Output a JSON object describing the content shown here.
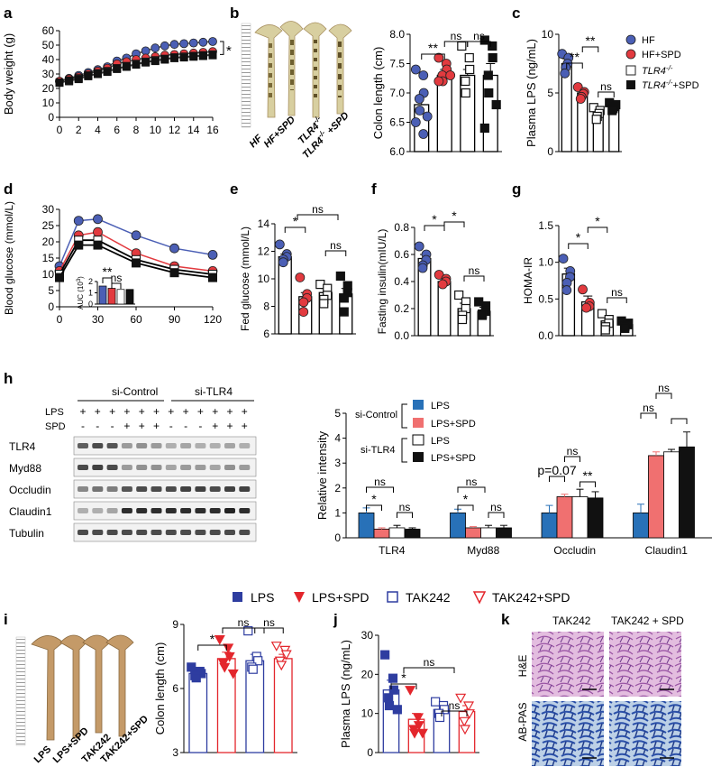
{
  "colors": {
    "hf": "#4b5fb5",
    "spd": "#e23a3f",
    "blue": "#2871b8",
    "salmon": "#f07070",
    "navy": "#2e3da0",
    "red": "#e3262c"
  },
  "panels": {
    "a": "a",
    "b": "b",
    "c": "c",
    "d": "d",
    "e": "e",
    "f": "f",
    "g": "g",
    "h": "h",
    "i": "i",
    "j": "j",
    "k": "k"
  },
  "legend_c": {
    "hf": "HF",
    "hf_spd": "HF+SPD",
    "tlr4": "TLR4",
    "tlr4_spd": "TLR4",
    "sup": "-/-",
    "spd_suffix": "+SPD"
  },
  "photo_b": {
    "labels": [
      "HF",
      "HF+SPD",
      "TLR4",
      "TLR4"
    ],
    "sup": "-/-",
    "spd_suffix": " +SPD"
  },
  "photo_i": {
    "labels": [
      "LPS",
      "LPS+SPD",
      "TAK242",
      "TAK242+SPD"
    ]
  },
  "legend_i": {
    "items": [
      "LPS",
      "LPS+SPD",
      "TAK242",
      "TAK242+SPD"
    ]
  },
  "panel_h": {
    "groups": [
      "si-Control",
      "si-TLR4"
    ],
    "rowlabels": [
      "LPS",
      "SPD"
    ],
    "lps_marks": [
      "+",
      "+",
      "+",
      "+",
      "+",
      "+",
      "+",
      "+",
      "+",
      "+",
      "+",
      "+"
    ],
    "spd_marks": [
      "-",
      "-",
      "-",
      "+",
      "+",
      "+",
      "-",
      "-",
      "-",
      "+",
      "+",
      "+"
    ],
    "bands": [
      "TLR4",
      "Myd88",
      "Occludin",
      "Claudin1",
      "Tubulin"
    ],
    "legend": {
      "si_control": "si-Control",
      "si_tlr4": "si-TLR4",
      "items": [
        "LPS",
        "LPS+SPD",
        "LPS",
        "LPS+SPD"
      ]
    }
  },
  "panel_k": {
    "cols": [
      "TAK242",
      "TAK242 + SPD"
    ],
    "rows": [
      "H&E",
      "AB-PAS"
    ]
  },
  "chart_data": [
    {
      "id": "a",
      "type": "line",
      "xlabel": "",
      "ylabel": "Body weight (g)",
      "ylim": [
        0,
        60
      ],
      "yticks": [
        "0",
        "10",
        "20",
        "30",
        "40",
        "50",
        "60"
      ],
      "xticks": [
        "0",
        "2",
        "4",
        "6",
        "8",
        "10",
        "12",
        "14",
        "16"
      ],
      "x": [
        0,
        1,
        2,
        3,
        4,
        5,
        6,
        7,
        8,
        9,
        10,
        11,
        12,
        13,
        14,
        15,
        16
      ],
      "series": [
        {
          "name": "HF",
          "values": [
            25,
            27,
            29,
            31,
            33,
            35,
            39,
            41,
            44,
            46,
            48,
            49.5,
            50.5,
            51,
            51.5,
            52,
            52.5
          ]
        },
        {
          "name": "HF+SPD",
          "values": [
            25,
            26.5,
            28,
            30,
            32,
            34,
            37,
            38.5,
            40,
            41,
            42,
            43,
            43.5,
            44,
            44.5,
            45,
            45.5
          ]
        },
        {
          "name": "TLR4-/-",
          "values": [
            24,
            25.5,
            27,
            29,
            30.5,
            32,
            34,
            35.5,
            37,
            38.5,
            39.5,
            40.5,
            41.5,
            42,
            42.5,
            43,
            43.5
          ]
        },
        {
          "name": "TLR4-/-+SPD",
          "values": [
            24,
            25,
            26.5,
            28.5,
            30,
            31.5,
            33.5,
            35,
            36.5,
            38,
            39,
            40,
            41,
            41.5,
            42,
            42.5,
            43
          ]
        }
      ],
      "annotations": [
        "*"
      ]
    },
    {
      "id": "b",
      "type": "bar",
      "ylabel": "Colon length (cm)",
      "ylim": [
        6.0,
        8.0
      ],
      "yticks": [
        "6.0",
        "6.5",
        "7.0",
        "7.5",
        "8.0"
      ],
      "categories": [
        "HF",
        "HF+SPD",
        "TLR4-/-",
        "TLR4-/-+SPD"
      ],
      "values": [
        6.8,
        7.3,
        7.3,
        7.3
      ],
      "errors": [
        0.15,
        0.1,
        0.1,
        0.2
      ],
      "points": [
        [
          7.4,
          7.3,
          7.0,
          6.9,
          6.7,
          6.6,
          6.5,
          6.3
        ],
        [
          7.6,
          7.5,
          7.4,
          7.3,
          7.2,
          7.3,
          7.2
        ],
        [
          7.8,
          7.6,
          7.4,
          7.2,
          7.0
        ],
        [
          7.9,
          7.8,
          7.6,
          7.3,
          7.0,
          6.8,
          6.4
        ]
      ],
      "annotations": [
        "**",
        "ns",
        "ns"
      ]
    },
    {
      "id": "c",
      "type": "bar",
      "ylabel": "Plasma LPS (ng/mL)",
      "ylim": [
        0,
        12
      ],
      "yticks": [
        "0",
        "5",
        "10"
      ],
      "categories": [
        "HF",
        "HF+SPD",
        "TLR4-/-",
        "TLR4-/-+SPD"
      ],
      "values": [
        9,
        6,
        4,
        4.5
      ],
      "errors": [
        0.5,
        0.3,
        0.3,
        0.3
      ],
      "points": [
        [
          10,
          9.6,
          9.0,
          8.6,
          8.0
        ],
        [
          6.6,
          6.1,
          5.9,
          5.6,
          5.4
        ],
        [
          4.5,
          4.2,
          3.9,
          3.6,
          3.3
        ],
        [
          5.0,
          4.8,
          4.6,
          4.4,
          4.2
        ]
      ],
      "annotations": [
        "**",
        "**",
        "ns"
      ]
    },
    {
      "id": "d",
      "type": "line",
      "ylabel": "Blood glucose (mmol/L)",
      "ylim": [
        0,
        30
      ],
      "yticks": [
        "0",
        "5",
        "10",
        "15",
        "20",
        "25",
        "30"
      ],
      "xticks": [
        "0",
        "30",
        "60",
        "90",
        "120"
      ],
      "x": [
        0,
        15,
        30,
        60,
        90,
        120
      ],
      "series": [
        {
          "name": "HF",
          "values": [
            12.5,
            26.5,
            27,
            22,
            18,
            16
          ]
        },
        {
          "name": "HF+SPD",
          "values": [
            11,
            22,
            23,
            16.5,
            12.5,
            11
          ]
        },
        {
          "name": "TLR4-/-",
          "values": [
            10,
            20.5,
            20.5,
            14.5,
            11.5,
            10
          ]
        },
        {
          "name": "TLR4-/-+SPD",
          "values": [
            9,
            19,
            19,
            13.5,
            10.5,
            9
          ]
        }
      ],
      "inset": {
        "ylabel": "AUC (10",
        "sup": "3",
        "ylabel_end": ")",
        "ylim": [
          0,
          2
        ],
        "yticks": [
          "0",
          "1",
          "2"
        ],
        "values": [
          1.6,
          1.4,
          1.3,
          1.3
        ],
        "annotations": [
          "**",
          "ns"
        ]
      }
    },
    {
      "id": "e",
      "type": "bar",
      "ylabel": "Fed glucose (mmol/L)",
      "ylim": [
        6,
        14
      ],
      "yticks": [
        "6",
        "8",
        "10",
        "12",
        "14"
      ],
      "categories": [
        "HF",
        "HF+SPD",
        "TLR4-/-",
        "TLR4-/-+SPD"
      ],
      "values": [
        11.6,
        8.7,
        9.0,
        8.9
      ],
      "errors": [
        0.2,
        0.3,
        0.3,
        0.4
      ],
      "points": [
        [
          12.5,
          11.8,
          11.6,
          11.4,
          11.2
        ],
        [
          10.1,
          8.9,
          8.6,
          8.3,
          7.6
        ],
        [
          9.6,
          9.3,
          8.8,
          8.5,
          8.2
        ],
        [
          10.2,
          9.5,
          9.0,
          8.6,
          7.6
        ]
      ],
      "annotations": [
        "*",
        "ns",
        "ns"
      ]
    },
    {
      "id": "f",
      "type": "bar",
      "ylabel": "Fasting insulin(mIU/L)",
      "ylim": [
        0.0,
        0.8
      ],
      "yticks": [
        "0.0",
        "0.2",
        "0.4",
        "0.6",
        "0.8"
      ],
      "categories": [
        "HF",
        "HF+SPD",
        "TLR4-/-",
        "TLR4-/-+SPD"
      ],
      "values": [
        0.57,
        0.4,
        0.2,
        0.18
      ],
      "errors": [
        0.03,
        0.02,
        0.04,
        0.03
      ],
      "points": [
        [
          0.66,
          0.6,
          0.56,
          0.52,
          0.5
        ],
        [
          0.45,
          0.42,
          0.4,
          0.38
        ],
        [
          0.3,
          0.25,
          0.2,
          0.15,
          0.12
        ],
        [
          0.25,
          0.22,
          0.18,
          0.16,
          0.15
        ]
      ],
      "annotations": [
        "*",
        "*",
        "ns"
      ]
    },
    {
      "id": "g",
      "type": "bar",
      "ylabel": "HOMA-IR",
      "ylim": [
        0.0,
        1.5
      ],
      "yticks": [
        "0.0",
        "0.5",
        "1.0",
        "1.5"
      ],
      "categories": [
        "HF",
        "HF+SPD",
        "TLR4-/-",
        "TLR4-/-+SPD"
      ],
      "values": [
        0.84,
        0.46,
        0.2,
        0.15
      ],
      "errors": [
        0.08,
        0.08,
        0.05,
        0.03
      ],
      "points": [
        [
          1.05,
          0.88,
          0.8,
          0.72,
          0.62
        ],
        [
          0.63,
          0.45,
          0.4,
          0.38
        ],
        [
          0.3,
          0.22,
          0.17,
          0.12,
          0.08
        ],
        [
          0.2,
          0.17,
          0.15,
          0.13,
          0.1
        ]
      ],
      "annotations": [
        "*",
        "*",
        "ns"
      ]
    },
    {
      "id": "h",
      "type": "bar",
      "ylabel": "Relative intensity",
      "ylim": [
        0,
        5
      ],
      "yticks": [
        "0",
        "1",
        "2",
        "3",
        "4",
        "5"
      ],
      "categories": [
        "TLR4",
        "Myd88",
        "Occludin",
        "Claudin1"
      ],
      "series": [
        {
          "name": "si-Control LPS",
          "values": [
            1.0,
            1.0,
            1.0,
            1.0
          ],
          "errors": [
            0.2,
            0.15,
            0.3,
            0.35
          ]
        },
        {
          "name": "si-Control LPS+SPD",
          "values": [
            0.35,
            0.4,
            1.65,
            3.3
          ],
          "errors": [
            0.05,
            0.05,
            0.1,
            0.15
          ]
        },
        {
          "name": "si-TLR4 LPS",
          "values": [
            0.4,
            0.4,
            1.65,
            3.45
          ],
          "errors": [
            0.1,
            0.1,
            0.3,
            0.1
          ]
        },
        {
          "name": "si-TLR4 LPS+SPD",
          "values": [
            0.35,
            0.4,
            1.6,
            3.65
          ],
          "errors": [
            0.05,
            0.1,
            0.25,
            0.6
          ]
        }
      ],
      "annotations": [
        "*",
        "ns",
        "ns",
        "*",
        "ns",
        "ns",
        "p=0.07",
        "ns",
        "**",
        "ns",
        "ns"
      ]
    },
    {
      "id": "i",
      "type": "bar",
      "ylabel": "Colon length (cm)",
      "ylim": [
        3,
        9
      ],
      "yticks": [
        "3",
        "6",
        "9"
      ],
      "categories": [
        "LPS",
        "LPS+SPD",
        "TAK242",
        "TAK242+SPD"
      ],
      "values": [
        6.7,
        7.4,
        7.3,
        7.4
      ],
      "errors": [
        0.15,
        0.3,
        0.3,
        0.2
      ],
      "points": [
        [
          7.0,
          6.8,
          6.7,
          6.6,
          6.5
        ],
        [
          8.3,
          7.9,
          7.5,
          7.2,
          7.0,
          6.7
        ],
        [
          8.7,
          7.5,
          7.3,
          7.0,
          6.9
        ],
        [
          8.0,
          7.8,
          7.6,
          7.3,
          7.1
        ]
      ],
      "annotations": [
        "*",
        "ns",
        "ns"
      ]
    },
    {
      "id": "j",
      "type": "bar",
      "ylabel": "Plasma LPS (ng/mL)",
      "ylim": [
        0,
        30
      ],
      "yticks": [
        "0",
        "10",
        "20",
        "30"
      ],
      "categories": [
        "LPS",
        "LPS+SPD",
        "TAK242",
        "TAK242+SPD"
      ],
      "values": [
        16,
        8.5,
        11,
        10.5
      ],
      "errors": [
        2.5,
        1.5,
        1,
        1.5
      ],
      "points": [
        [
          25,
          19,
          16,
          14,
          12,
          11
        ],
        [
          16,
          9,
          7,
          6,
          5,
          5
        ],
        [
          13,
          12,
          11,
          10,
          9
        ],
        [
          14,
          12,
          10,
          8,
          6
        ]
      ],
      "annotations": [
        "*",
        "ns",
        "ns"
      ]
    }
  ]
}
